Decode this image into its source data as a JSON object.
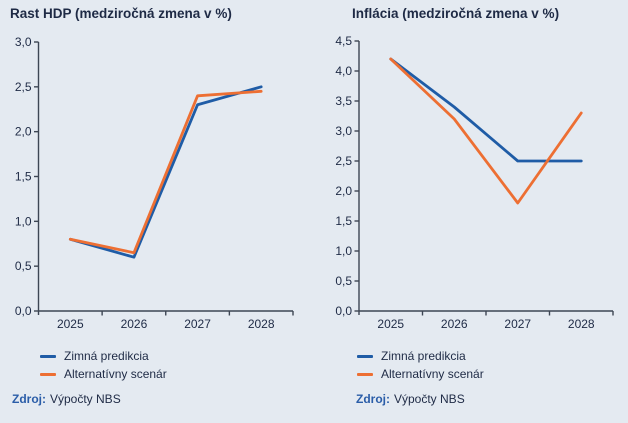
{
  "page": {
    "background_color": "#E4EAF1",
    "text_color": "#1E2A45",
    "axis_color": "#3D4654",
    "source_label_color": "#2A5DA8"
  },
  "chart_data": [
    {
      "type": "line",
      "title": "Rast HDP (medziročná zmena v %)",
      "xlabel": "",
      "ylabel": "",
      "categories": [
        "2025",
        "2026",
        "2027",
        "2028"
      ],
      "series": [
        {
          "name": "Zimná predikcia",
          "color": "#1F5CA6",
          "values": [
            0.8,
            0.6,
            2.3,
            2.5
          ]
        },
        {
          "name": "Alternatívny scenár",
          "color": "#ED6F33",
          "values": [
            0.8,
            0.65,
            2.4,
            2.45
          ]
        }
      ],
      "ylim": [
        0,
        3.0
      ],
      "y_step": 0.5,
      "y_tick_labels": [
        "0,0",
        "0,5",
        "1,0",
        "1,5",
        "2,0",
        "2,5",
        "3,0"
      ],
      "grid": false,
      "legend_position": "bottom-left",
      "source": {
        "label": "Zdroj:",
        "text": "Výpočty NBS"
      }
    },
    {
      "type": "line",
      "title": "Inflácia (medziročná zmena v %)",
      "xlabel": "",
      "ylabel": "",
      "categories": [
        "2025",
        "2026",
        "2027",
        "2028"
      ],
      "series": [
        {
          "name": "Zimná predikcia",
          "color": "#1F5CA6",
          "values": [
            4.2,
            3.4,
            2.5,
            2.5
          ]
        },
        {
          "name": "Alternatívny scenár",
          "color": "#ED6F33",
          "values": [
            4.2,
            3.2,
            1.8,
            3.3
          ]
        }
      ],
      "ylim": [
        0,
        4.5
      ],
      "y_step": 0.5,
      "y_tick_labels": [
        "0,0",
        "0,5",
        "1,0",
        "1,5",
        "2,0",
        "2,5",
        "3,0",
        "3,5",
        "4,0",
        "4,5"
      ],
      "grid": false,
      "legend_position": "bottom-left",
      "source": {
        "label": "Zdroj:",
        "text": "Výpočty NBS"
      }
    }
  ]
}
